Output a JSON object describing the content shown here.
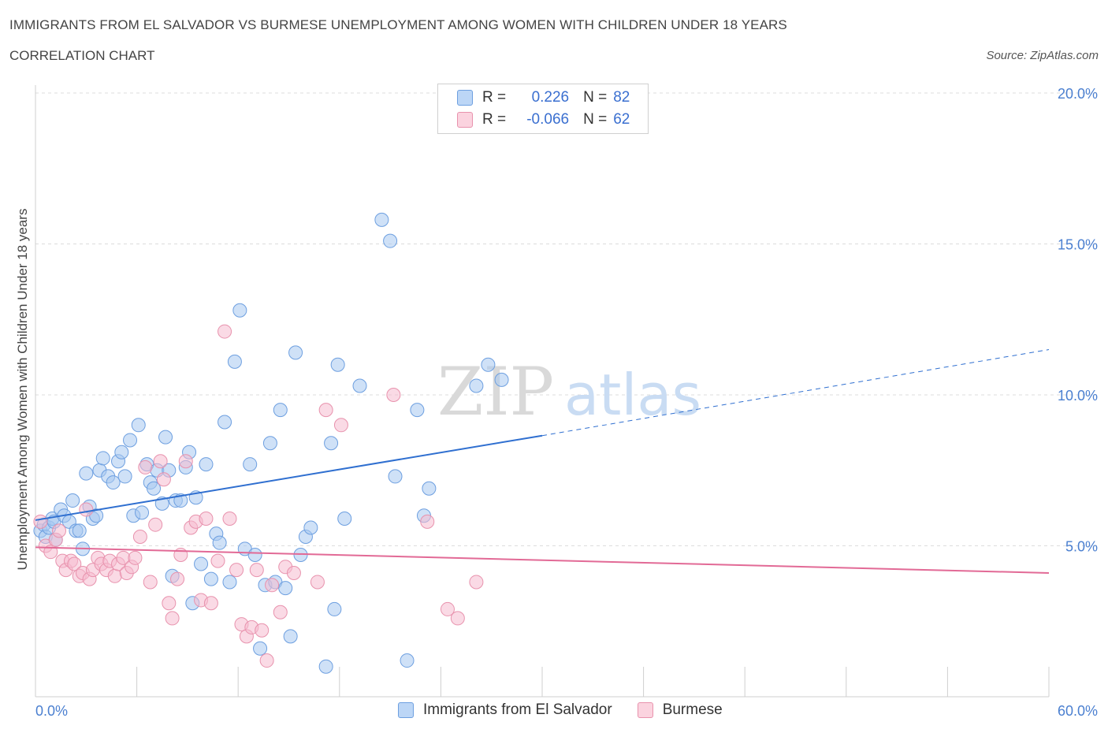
{
  "header": {
    "title": "IMMIGRANTS FROM EL SALVADOR VS BURMESE UNEMPLOYMENT AMONG WOMEN WITH CHILDREN UNDER 18 YEARS",
    "subtitle": "CORRELATION CHART",
    "source": "Source: ZipAtlas.com"
  },
  "watermark": "ZIPatlas",
  "legend": {
    "r_label": "R =",
    "n_label": "N =",
    "series": [
      {
        "r": "0.226",
        "n": "82"
      },
      {
        "r": "-0.066",
        "n": "62"
      }
    ]
  },
  "colors": {
    "blue_fill": "#a8c8f0",
    "blue_stroke": "#6d9fe0",
    "blue_line": "#2f6fd0",
    "pink_fill": "#f6bcd0",
    "pink_stroke": "#e892ad",
    "pink_line": "#e26a96",
    "tick_label": "#4a7fd0"
  },
  "chart_data": {
    "type": "scatter",
    "title": "IMMIGRANTS FROM EL SALVADOR VS BURMESE UNEMPLOYMENT AMONG WOMEN WITH CHILDREN UNDER 18 YEARS",
    "subtitle": "CORRELATION CHART",
    "xlabel": "",
    "ylabel": "Unemployment Among Women with Children Under 18 years",
    "xlim": [
      0,
      60
    ],
    "ylim": [
      0,
      20
    ],
    "x_tick_labels": [
      "0.0%",
      "60.0%"
    ],
    "y_ticks": [
      5,
      10,
      15,
      20
    ],
    "y_tick_labels": [
      "5.0%",
      "10.0%",
      "15.0%",
      "20.0%"
    ],
    "grid": true,
    "legend_position": "top-center",
    "series": [
      {
        "name": "Immigrants from El Salvador",
        "color": "#a8c8f0",
        "trend": {
          "x0": 0,
          "y0": 5.85,
          "x1": 30,
          "y1": 8.65,
          "dashed_to_x": 60,
          "dashed_to_y": 11.5
        },
        "points": [
          [
            0.3,
            5.5
          ],
          [
            0.5,
            5.7
          ],
          [
            0.6,
            5.3
          ],
          [
            0.8,
            5.6
          ],
          [
            1.0,
            5.9
          ],
          [
            1.1,
            5.8
          ],
          [
            1.2,
            5.2
          ],
          [
            1.5,
            6.2
          ],
          [
            1.7,
            6.0
          ],
          [
            2.0,
            5.8
          ],
          [
            2.2,
            6.5
          ],
          [
            2.4,
            5.5
          ],
          [
            2.6,
            5.5
          ],
          [
            2.8,
            4.9
          ],
          [
            3.0,
            7.4
          ],
          [
            3.2,
            6.3
          ],
          [
            3.4,
            5.9
          ],
          [
            3.6,
            6.0
          ],
          [
            3.8,
            7.5
          ],
          [
            4.0,
            7.9
          ],
          [
            4.3,
            7.3
          ],
          [
            4.6,
            7.1
          ],
          [
            4.9,
            7.8
          ],
          [
            5.1,
            8.1
          ],
          [
            5.3,
            7.3
          ],
          [
            5.6,
            8.5
          ],
          [
            5.8,
            6.0
          ],
          [
            6.1,
            9.0
          ],
          [
            6.3,
            6.1
          ],
          [
            6.6,
            7.7
          ],
          [
            6.8,
            7.1
          ],
          [
            7.0,
            6.9
          ],
          [
            7.2,
            7.5
          ],
          [
            7.5,
            6.4
          ],
          [
            7.7,
            8.6
          ],
          [
            7.9,
            7.5
          ],
          [
            8.1,
            4.0
          ],
          [
            8.3,
            6.5
          ],
          [
            8.6,
            6.5
          ],
          [
            8.9,
            7.6
          ],
          [
            9.1,
            8.1
          ],
          [
            9.3,
            3.1
          ],
          [
            9.5,
            6.6
          ],
          [
            9.8,
            4.4
          ],
          [
            10.1,
            7.7
          ],
          [
            10.4,
            3.9
          ],
          [
            10.7,
            5.4
          ],
          [
            10.9,
            5.1
          ],
          [
            11.2,
            9.1
          ],
          [
            11.5,
            3.8
          ],
          [
            11.8,
            11.1
          ],
          [
            12.1,
            12.8
          ],
          [
            12.4,
            4.9
          ],
          [
            12.7,
            7.7
          ],
          [
            13.0,
            4.7
          ],
          [
            13.3,
            1.6
          ],
          [
            13.6,
            3.7
          ],
          [
            13.9,
            8.4
          ],
          [
            14.2,
            3.8
          ],
          [
            14.5,
            9.5
          ],
          [
            14.8,
            3.6
          ],
          [
            15.1,
            2.0
          ],
          [
            15.4,
            11.4
          ],
          [
            15.7,
            4.7
          ],
          [
            16.0,
            5.3
          ],
          [
            16.3,
            5.6
          ],
          [
            17.2,
            1.0
          ],
          [
            17.5,
            8.4
          ],
          [
            17.7,
            2.9
          ],
          [
            17.9,
            11.0
          ],
          [
            18.3,
            5.9
          ],
          [
            19.2,
            10.3
          ],
          [
            20.5,
            15.8
          ],
          [
            21.0,
            15.1
          ],
          [
            21.3,
            7.3
          ],
          [
            22.0,
            1.2
          ],
          [
            22.6,
            9.5
          ],
          [
            23.0,
            6.0
          ],
          [
            23.3,
            6.9
          ],
          [
            26.1,
            10.3
          ],
          [
            26.8,
            11.0
          ],
          [
            27.6,
            10.5
          ]
        ]
      },
      {
        "name": "Burmese",
        "color": "#f6bcd0",
        "trend": {
          "x0": 0,
          "y0": 4.95,
          "x1": 60,
          "y1": 4.1
        },
        "points": [
          [
            0.3,
            5.8
          ],
          [
            0.6,
            5.0
          ],
          [
            0.9,
            4.8
          ],
          [
            1.2,
            5.2
          ],
          [
            1.4,
            5.5
          ],
          [
            1.6,
            4.5
          ],
          [
            1.8,
            4.2
          ],
          [
            2.1,
            4.5
          ],
          [
            2.3,
            4.4
          ],
          [
            2.6,
            4.0
          ],
          [
            2.8,
            4.1
          ],
          [
            3.0,
            6.2
          ],
          [
            3.2,
            3.9
          ],
          [
            3.4,
            4.2
          ],
          [
            3.7,
            4.6
          ],
          [
            3.9,
            4.4
          ],
          [
            4.2,
            4.2
          ],
          [
            4.4,
            4.5
          ],
          [
            4.7,
            4.0
          ],
          [
            4.9,
            4.4
          ],
          [
            5.2,
            4.6
          ],
          [
            5.4,
            4.1
          ],
          [
            5.7,
            4.3
          ],
          [
            5.9,
            4.6
          ],
          [
            6.2,
            5.3
          ],
          [
            6.5,
            7.6
          ],
          [
            6.8,
            3.8
          ],
          [
            7.1,
            5.7
          ],
          [
            7.4,
            7.8
          ],
          [
            7.6,
            7.2
          ],
          [
            7.9,
            3.1
          ],
          [
            8.1,
            2.6
          ],
          [
            8.4,
            3.9
          ],
          [
            8.6,
            4.7
          ],
          [
            8.9,
            7.8
          ],
          [
            9.2,
            5.6
          ],
          [
            9.5,
            5.8
          ],
          [
            9.8,
            3.2
          ],
          [
            10.1,
            5.9
          ],
          [
            10.4,
            3.1
          ],
          [
            10.8,
            4.5
          ],
          [
            11.2,
            12.1
          ],
          [
            11.5,
            5.9
          ],
          [
            11.9,
            4.2
          ],
          [
            12.2,
            2.4
          ],
          [
            12.5,
            2.0
          ],
          [
            12.8,
            2.3
          ],
          [
            13.1,
            4.2
          ],
          [
            13.4,
            2.2
          ],
          [
            13.7,
            1.2
          ],
          [
            14.0,
            3.7
          ],
          [
            14.5,
            2.8
          ],
          [
            14.8,
            4.3
          ],
          [
            15.3,
            4.1
          ],
          [
            16.7,
            3.8
          ],
          [
            17.2,
            9.5
          ],
          [
            18.1,
            9.0
          ],
          [
            21.2,
            10.0
          ],
          [
            23.2,
            5.8
          ],
          [
            24.4,
            2.9
          ],
          [
            25.0,
            2.6
          ],
          [
            26.1,
            3.8
          ]
        ]
      }
    ]
  },
  "bottom_legend": [
    "Immigrants from El Salvador",
    "Burmese"
  ]
}
